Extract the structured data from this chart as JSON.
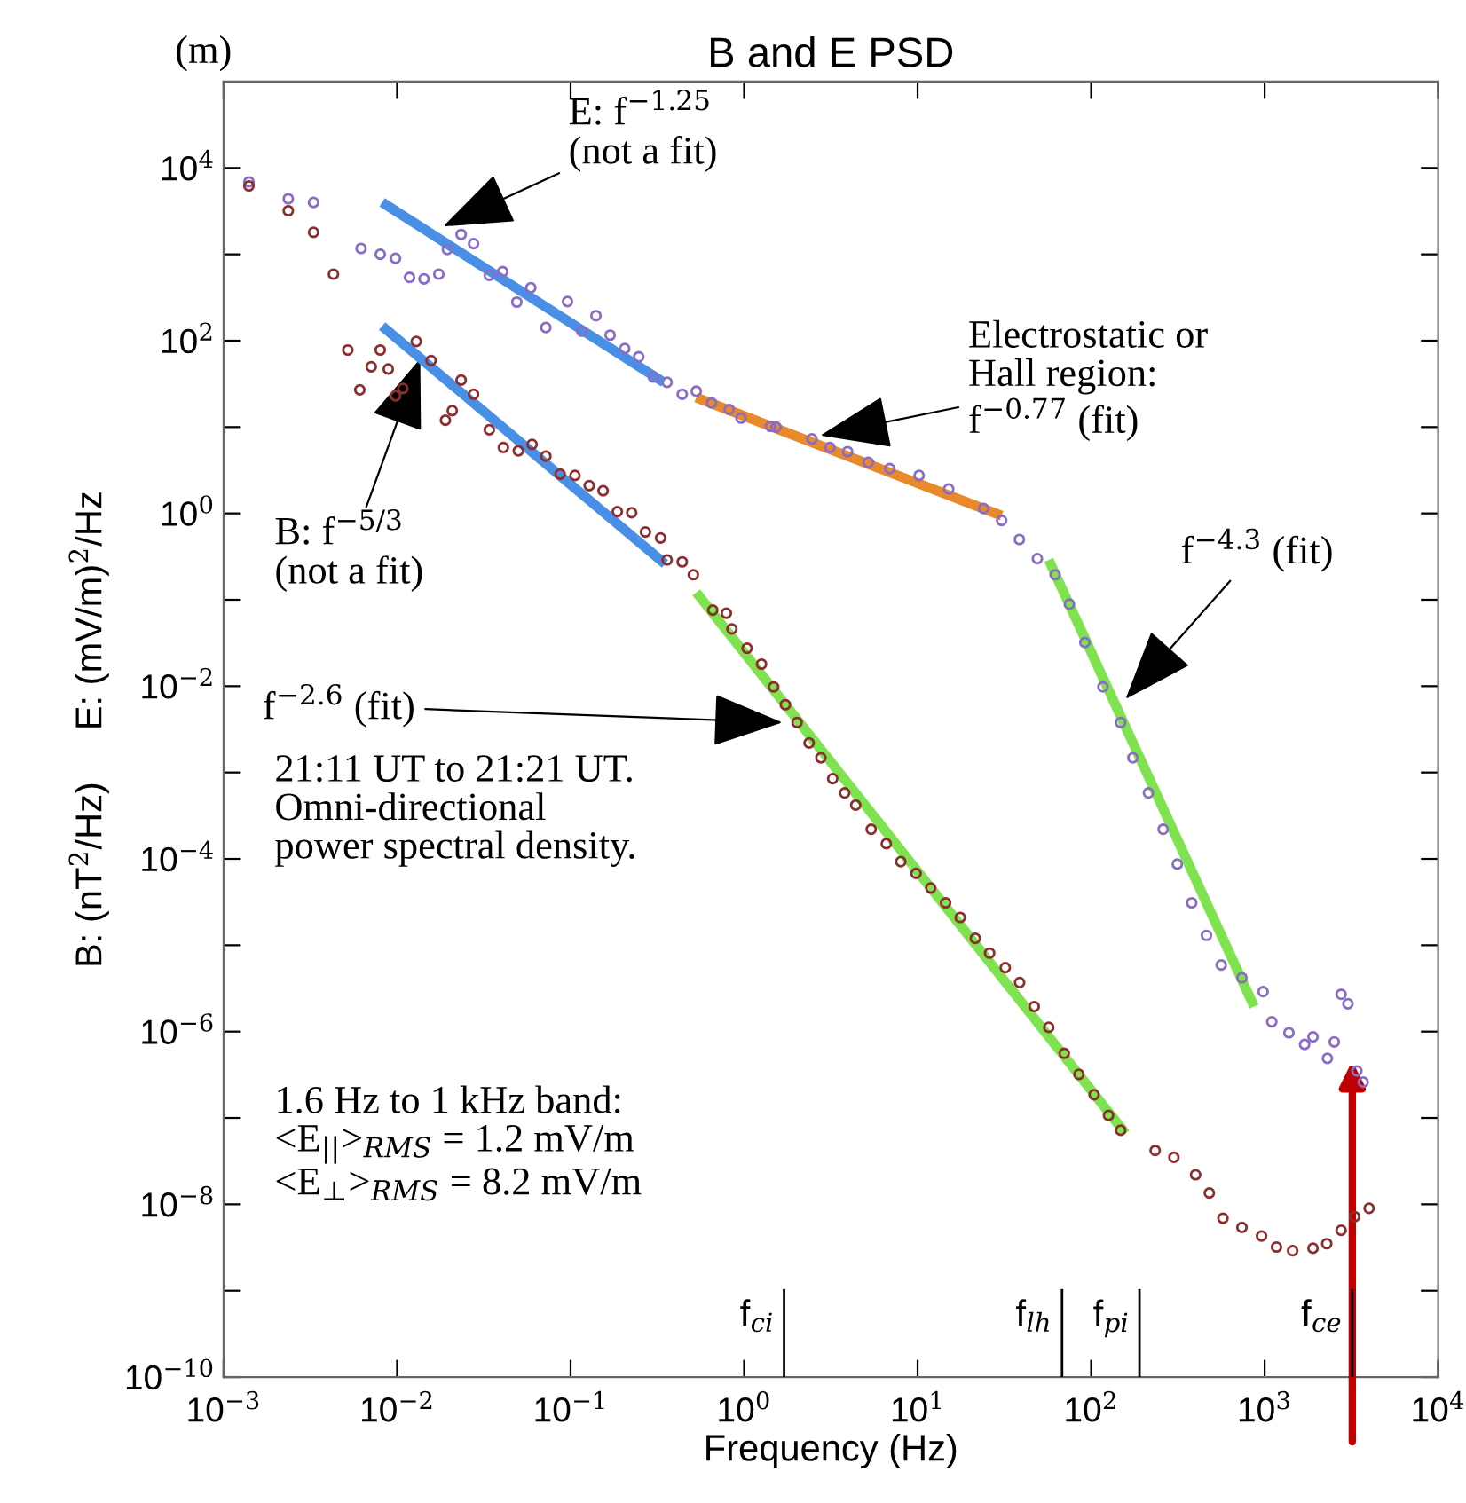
{
  "chart_data": {
    "type": "scatter",
    "title": "B and E PSD",
    "xlabel": "Frequency (Hz)",
    "ylabel": "B: (nT$^{2}$/Hz)     E: (mV/m)$^{2}$/Hz",
    "log": "xy",
    "grid": false,
    "marker": "circle",
    "xlim": [
      0.001,
      10000
    ],
    "ylim": [
      1e-10,
      100000
    ],
    "xticks": [
      {
        "value": 0.001,
        "label": "10$^{−3}$"
      },
      {
        "value": 0.01,
        "label": "10$^{−2}$"
      },
      {
        "value": 0.1,
        "label": "10$^{−1}$"
      },
      {
        "value": 1,
        "label": "10$^{0}$"
      },
      {
        "value": 10,
        "label": "10$^{1}$"
      },
      {
        "value": 100,
        "label": "10$^{2}$"
      },
      {
        "value": 1000,
        "label": "10$^{3}$"
      },
      {
        "value": 10000,
        "label": "10$^{4}$"
      }
    ],
    "yticks": [
      {
        "value": 1e-10,
        "label": "10$^{−10}$"
      },
      {
        "value": 1e-09,
        "label": null
      },
      {
        "value": 1e-08,
        "label": "10$^{−8}$"
      },
      {
        "value": 1e-07,
        "label": null
      },
      {
        "value": 1e-06,
        "label": "10$^{−6}$"
      },
      {
        "value": 1e-05,
        "label": null
      },
      {
        "value": 0.0001,
        "label": "10$^{−4}$"
      },
      {
        "value": 0.001,
        "label": null
      },
      {
        "value": 0.01,
        "label": "10$^{−2}$"
      },
      {
        "value": 0.1,
        "label": null
      },
      {
        "value": 1,
        "label": "10$^{0}$"
      },
      {
        "value": 10,
        "label": null
      },
      {
        "value": 100,
        "label": "10$^{2}$"
      },
      {
        "value": 1000,
        "label": null
      },
      {
        "value": 10000,
        "label": "10$^{4}$"
      }
    ],
    "series": [
      {
        "color": "#8a6cc4",
        "x": [
          0.0014,
          0.00236,
          0.0033,
          0.0062,
          0.008,
          0.0098,
          0.0118,
          0.0143,
          0.0174,
          0.0195,
          0.0234,
          0.0276,
          0.034,
          0.0406,
          0.049,
          0.059,
          0.072,
          0.096,
          0.116,
          0.14,
          0.169,
          0.205,
          0.247,
          0.3,
          0.36,
          0.44,
          0.53,
          0.65,
          0.82,
          0.96,
          1.42,
          1.53,
          2.46,
          3.12,
          3.95,
          5.2,
          6.9,
          10.2,
          15.1,
          24,
          30.5,
          38.6,
          49,
          62,
          75,
          92,
          117,
          148,
          174,
          214,
          260,
          314,
          380,
          462,
          562,
          740,
          980,
          1100,
          1380,
          1700,
          1900,
          2300,
          2520,
          2760,
          3020,
          3400,
          3700
        ],
        "values": [
          6900,
          4400,
          4000,
          1170,
          1000,
          900,
          540,
          520,
          590,
          1140,
          1700,
          1330,
          570,
          630,
          280,
          410,
          142,
          284,
          129,
          195,
          116,
          81,
          65,
          38,
          33,
          24,
          26,
          19,
          16,
          12.7,
          10.2,
          10,
          7.3,
          5.8,
          5.2,
          3.9,
          3.3,
          2.75,
          1.92,
          1.14,
          0.83,
          0.5,
          0.3,
          0.195,
          0.089,
          0.032,
          0.0098,
          0.0038,
          0.00148,
          0.00058,
          0.00022,
          8.7e-05,
          3.1e-05,
          1.3e-05,
          5.9e-06,
          4.2e-06,
          2.9e-06,
          1.3e-06,
          9.7e-07,
          7.1e-07,
          8.7e-07,
          4.9e-07,
          7.6e-07,
          2.7e-06,
          2.1e-06,
          3.5e-07,
          2.6e-07
        ]
      },
      {
        "color": "#8b2e2e",
        "x": [
          0.0014,
          0.00236,
          0.0033,
          0.0043,
          0.0052,
          0.0061,
          0.0071,
          0.008,
          0.0089,
          0.0098,
          0.0108,
          0.0129,
          0.0157,
          0.019,
          0.0208,
          0.0234,
          0.0276,
          0.034,
          0.041,
          0.05,
          0.06,
          0.072,
          0.087,
          0.106,
          0.128,
          0.154,
          0.186,
          0.225,
          0.27,
          0.33,
          0.36,
          0.44,
          0.51,
          0.66,
          0.79,
          0.85,
          1.04,
          1.26,
          1.48,
          1.73,
          2.02,
          2.37,
          2.77,
          3.24,
          3.8,
          4.4,
          5.4,
          6.6,
          8,
          9.8,
          11.9,
          14.5,
          17.6,
          21.5,
          26,
          32,
          38.7,
          47,
          57,
          70,
          85,
          104,
          126,
          148,
          234,
          300,
          400,
          480,
          575,
          740,
          960,
          1170,
          1450,
          1900,
          2280,
          2760,
          3300,
          4000
        ],
        "values": [
          6200,
          3200,
          1800,
          590,
          78,
          27,
          50,
          78,
          47,
          23,
          28,
          98,
          59,
          12,
          15.5,
          35,
          24,
          9.3,
          5.8,
          5.3,
          6.3,
          4.6,
          2.85,
          2.75,
          2.1,
          1.83,
          1.05,
          1.02,
          0.61,
          0.52,
          0.29,
          0.275,
          0.195,
          0.076,
          0.07,
          0.046,
          0.0275,
          0.018,
          0.0098,
          0.0061,
          0.0038,
          0.0022,
          0.00148,
          0.00085,
          0.00058,
          0.00042,
          0.00022,
          0.00015,
          9.3e-05,
          6.8e-05,
          4.6e-05,
          3.1e-05,
          2.1e-05,
          1.2e-05,
          8.1e-06,
          5.5e-06,
          3.7e-06,
          1.95e-06,
          1.12e-06,
          5.6e-07,
          3.2e-07,
          1.86e-07,
          1.07e-07,
          7.2e-08,
          4.2e-08,
          3.5e-08,
          2.2e-08,
          1.35e-08,
          6.9e-09,
          5.4e-09,
          4.3e-09,
          3.2e-09,
          2.9e-09,
          3.1e-09,
          3.5e-09,
          5e-09,
          7.2e-09,
          9e-09
        ]
      },
      {
        "type": "line",
        "marker": "none",
        "color": "#4a8fe6",
        "x": [
          0.0082,
          0.344
        ],
        "values": [
          4000,
          33
        ]
      },
      {
        "type": "line",
        "marker": "none",
        "color": "#4a8fe6",
        "x": [
          0.0082,
          0.35
        ],
        "values": [
          148,
          0.26
        ]
      },
      {
        "type": "line",
        "marker": "none",
        "color": "#e8892c",
        "x": [
          0.53,
          30.5
        ],
        "values": [
          22,
          0.94
        ]
      },
      {
        "type": "line",
        "marker": "none",
        "color": "#7fe34f",
        "x": [
          0.53,
          158
        ],
        "values": [
          0.122,
          6.6e-08
        ]
      },
      {
        "type": "line",
        "marker": "none",
        "color": "#7fe34f",
        "x": [
          57,
          870
        ],
        "values": [
          0.29,
          1.95e-06
        ]
      }
    ],
    "ref_lines": [
      {
        "axis": "x",
        "value": 1.7,
        "label": "f$_{ci}$",
        "color": "#000000"
      },
      {
        "axis": "x",
        "value": 68,
        "label": "f$_{lh}$",
        "color": "#000000"
      },
      {
        "axis": "x",
        "value": 190,
        "label": "f$_{pi}$",
        "color": "#000000"
      },
      {
        "axis": "x",
        "value": 3200,
        "label": "f$_{ce}$",
        "color": "#000000"
      }
    ],
    "annotations": [
      "(m)",
      {
        "text": "E: f$^{−1.25}$\n(not a fit)",
        "x": 0.0184,
        "y": 2100
      },
      {
        "text": "B: f$^{−5/3}$\n(not a fit)",
        "x": 0.0136,
        "y": 62
      },
      {
        "text": "Electrostatic or\nHall region:\nf$^{−0.77}$ (fit)",
        "x": 2.75,
        "y": 8
      },
      {
        "text": "f$^{−4.3}$ (fit)",
        "x": 158,
        "y": 0.0071
      },
      {
        "text": "f$^{−2.6}$ (fit)",
        "x": 1.66,
        "y": 0.0038
      },
      "21:11 UT to 21:21 UT.\nOmni-directional\npower spectral density.",
      "1.6 Hz to 1 kHz band:\n<E$_{||}$>$_{RMS}$ = 1.2 mV/m\n<E$_{⊥}$>$_{RMS}$ = 8.2 mV/m"
    ]
  }
}
